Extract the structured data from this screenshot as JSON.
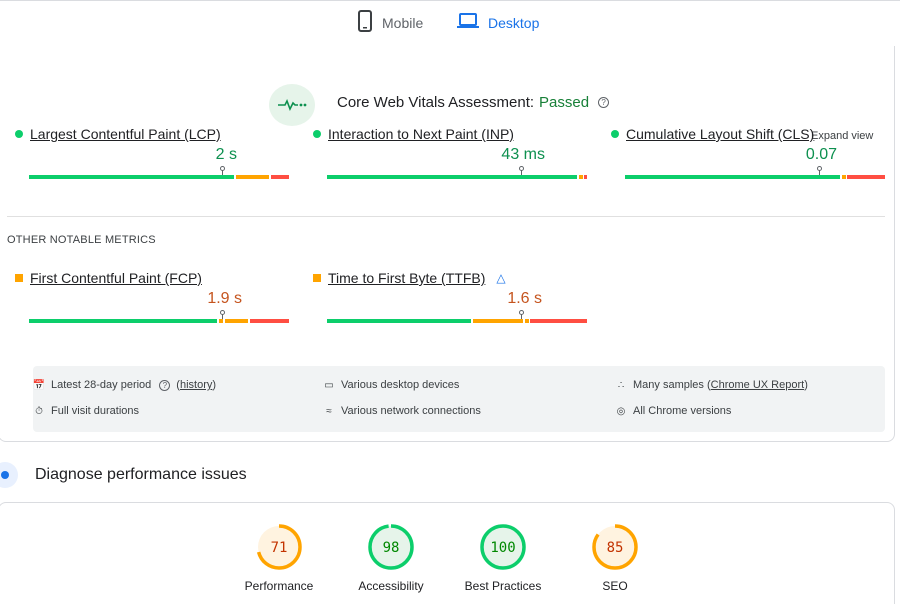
{
  "tabs": {
    "mobile_label": "Mobile",
    "desktop_label": "Desktop",
    "active": "Desktop"
  },
  "cwv": {
    "title": "Core Web Vitals Assessment:",
    "status": "Passed",
    "expand_label": "Expand view"
  },
  "core_metrics": [
    {
      "name": "Largest Contentful Paint (LCP)",
      "value": "2 s",
      "status": "good",
      "marker_fraction": 0.74
    },
    {
      "name": "Interaction to Next Paint (INP)",
      "value": "43 ms",
      "status": "good",
      "marker_fraction": 0.75
    },
    {
      "name": "Cumulative Layout Shift (CLS)",
      "value": "0.07",
      "status": "good",
      "marker_fraction": 0.75
    }
  ],
  "other_metrics_label": "OTHER NOTABLE METRICS",
  "other_metrics": [
    {
      "name": "First Contentful Paint (FCP)",
      "value": "1.9 s",
      "status": "needs-improvement",
      "marker_fraction": 0.74
    },
    {
      "name": "Time to First Byte (TTFB)",
      "value": "1.6 s",
      "status": "needs-improvement",
      "marker_fraction": 0.75
    }
  ],
  "info": {
    "period": "Latest 28-day period",
    "history_link": "history",
    "devices": "Various desktop devices",
    "samples_prefix": "Many samples (",
    "samples_link": "Chrome UX Report",
    "samples_suffix": ")",
    "durations": "Full visit durations",
    "network": "Various network connections",
    "chrome": "All Chrome versions"
  },
  "diagnose": {
    "title": "Diagnose performance issues"
  },
  "scores": [
    {
      "label": "Performance",
      "value": 71,
      "color": "#ffa400",
      "text_color": "#c33300",
      "bg": "#fff3e0"
    },
    {
      "label": "Accessibility",
      "value": 98,
      "color": "#0cce6b",
      "text_color": "#008800",
      "bg": "#e6f4ea"
    },
    {
      "label": "Best Practices",
      "value": 100,
      "color": "#0cce6b",
      "text_color": "#008800",
      "bg": "#e6f4ea"
    },
    {
      "label": "SEO",
      "value": 85,
      "color": "#ffa400",
      "text_color": "#c33300",
      "bg": "#fff3e0"
    }
  ],
  "colors": {
    "good": "#0cce6b",
    "needs_improvement": "#ffa400",
    "poor": "#ff4e42",
    "accent": "#1a73e8"
  }
}
